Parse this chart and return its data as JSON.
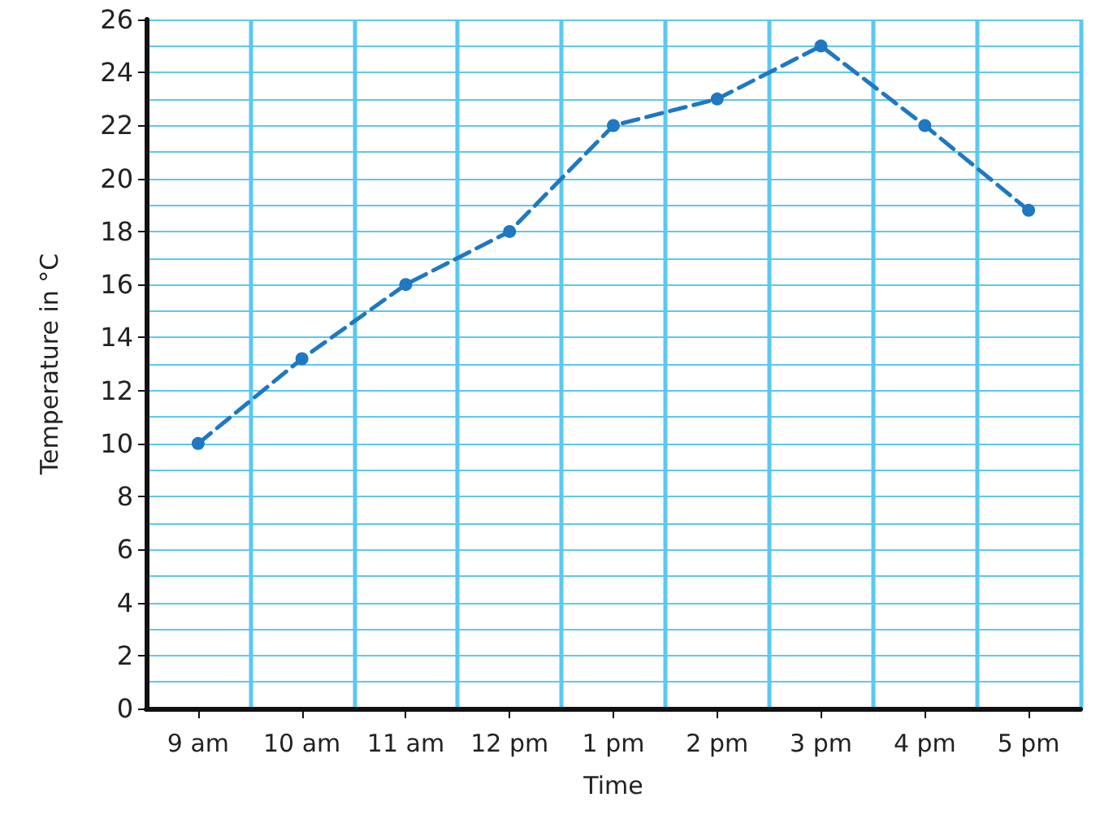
{
  "chart_data": {
    "type": "line",
    "xlabel": "Time",
    "ylabel": "Temperature in °C",
    "categories": [
      "9 am",
      "10 am",
      "11 am",
      "12 pm",
      "1 pm",
      "2 pm",
      "3 pm",
      "4 pm",
      "5 pm"
    ],
    "series": [
      {
        "color": "#1f78c1",
        "values": [
          10,
          13.2,
          16,
          18,
          22,
          23,
          25,
          22,
          18.8
        ]
      }
    ],
    "ylim": [
      0,
      26
    ],
    "yticks": [
      0,
      2,
      4,
      6,
      8,
      10,
      12,
      14,
      16,
      18,
      20,
      22,
      24,
      26
    ],
    "grid": true,
    "marker": "circle",
    "line_style": "dashed"
  }
}
